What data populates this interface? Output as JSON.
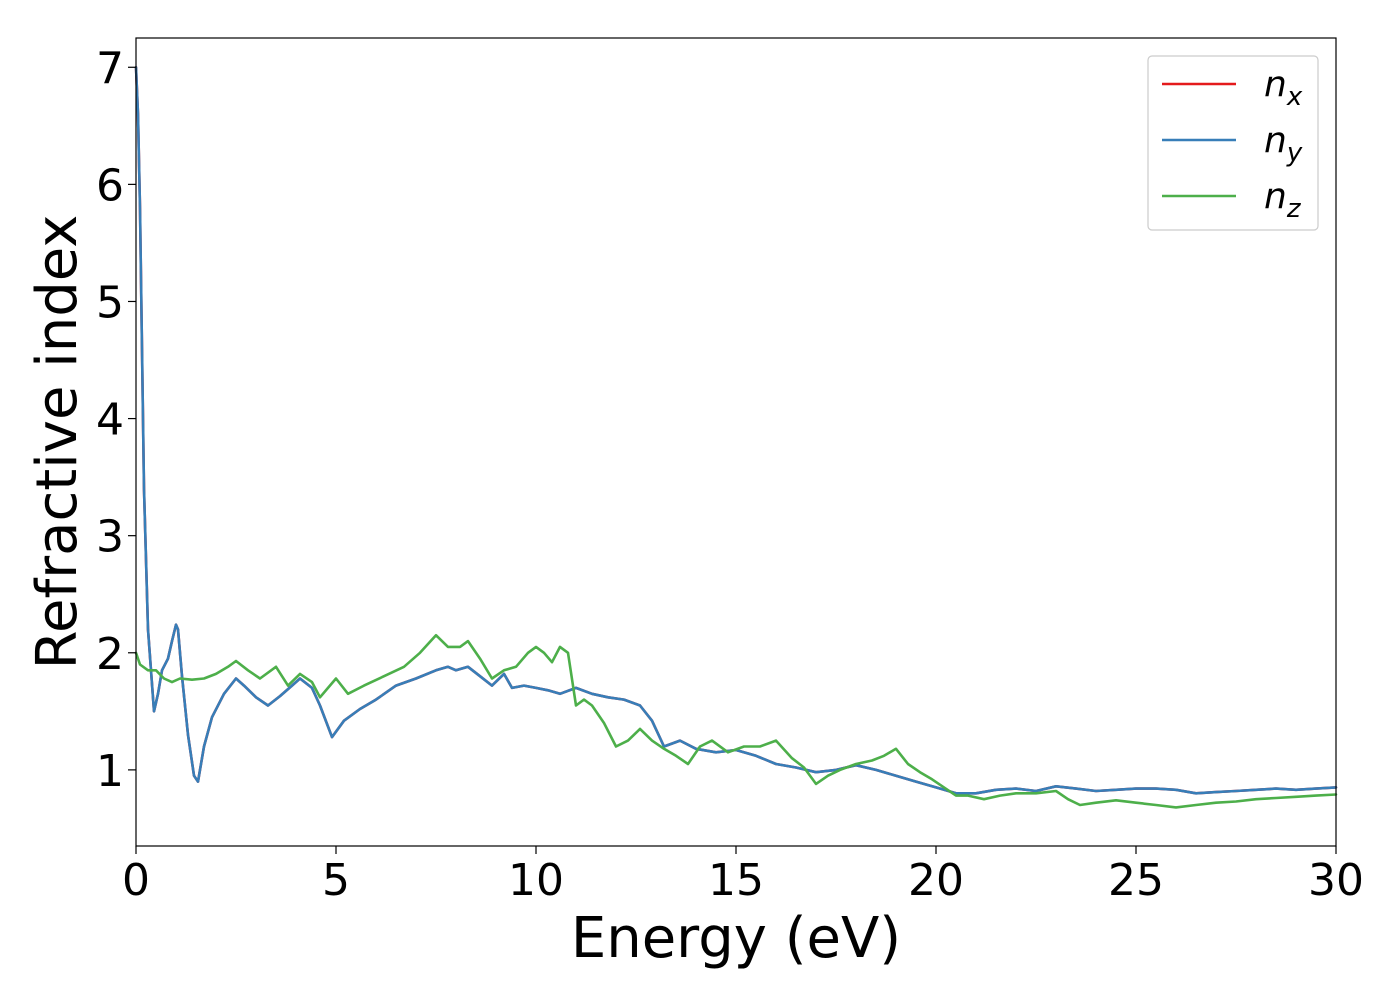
{
  "chart_data": {
    "type": "line",
    "title": "",
    "xlabel": "Energy (eV)",
    "ylabel": "Refractive index",
    "xlim": [
      0,
      30
    ],
    "ylim": [
      0.35,
      7.25
    ],
    "xticks": [
      0,
      5,
      10,
      15,
      20,
      25,
      30
    ],
    "yticks": [
      1,
      2,
      3,
      4,
      5,
      6,
      7
    ],
    "grid": false,
    "legend_position": "top-right",
    "series": [
      {
        "name": "n_x",
        "label_base": "n",
        "label_sub": "x",
        "color": "#e41a1c",
        "x": [
          0,
          0.05,
          0.1,
          0.15,
          0.2,
          0.3,
          0.45,
          0.55,
          0.65,
          0.8,
          0.9,
          1.0,
          1.05,
          1.15,
          1.3,
          1.45,
          1.55,
          1.7,
          1.9,
          2.2,
          2.5,
          2.7,
          3.0,
          3.3,
          3.6,
          3.9,
          4.1,
          4.4,
          4.6,
          4.9,
          5.2,
          5.6,
          6.0,
          6.5,
          7.0,
          7.5,
          7.8,
          8.0,
          8.3,
          8.6,
          8.9,
          9.2,
          9.4,
          9.7,
          10.0,
          10.3,
          10.6,
          11.0,
          11.4,
          11.8,
          12.2,
          12.6,
          12.9,
          13.2,
          13.6,
          14.0,
          14.5,
          15.0,
          15.5,
          16.0,
          16.5,
          17.0,
          17.5,
          18.0,
          18.5,
          19.0,
          19.5,
          20.0,
          20.5,
          21.0,
          21.5,
          22.0,
          22.5,
          23.0,
          23.5,
          24.0,
          24.5,
          25.0,
          25.5,
          26.0,
          26.5,
          27.0,
          27.5,
          28.0,
          28.5,
          29.0,
          29.5,
          30.0
        ],
        "y": [
          7.0,
          6.6,
          5.8,
          4.6,
          3.4,
          2.2,
          1.5,
          1.65,
          1.85,
          1.95,
          2.1,
          2.24,
          2.2,
          1.8,
          1.3,
          0.95,
          0.9,
          1.2,
          1.45,
          1.65,
          1.78,
          1.72,
          1.62,
          1.55,
          1.63,
          1.72,
          1.78,
          1.7,
          1.55,
          1.28,
          1.42,
          1.52,
          1.6,
          1.72,
          1.78,
          1.85,
          1.88,
          1.85,
          1.88,
          1.8,
          1.72,
          1.82,
          1.7,
          1.72,
          1.7,
          1.68,
          1.65,
          1.7,
          1.65,
          1.62,
          1.6,
          1.55,
          1.42,
          1.2,
          1.25,
          1.18,
          1.15,
          1.17,
          1.12,
          1.05,
          1.02,
          0.98,
          1.0,
          1.04,
          1.0,
          0.95,
          0.9,
          0.85,
          0.8,
          0.8,
          0.83,
          0.84,
          0.82,
          0.86,
          0.84,
          0.82,
          0.83,
          0.84,
          0.84,
          0.83,
          0.8,
          0.81,
          0.82,
          0.83,
          0.84,
          0.83,
          0.84,
          0.85
        ]
      },
      {
        "name": "n_y",
        "label_base": "n",
        "label_sub": "y",
        "color": "#377eb8",
        "x": [
          0,
          0.05,
          0.1,
          0.15,
          0.2,
          0.3,
          0.45,
          0.55,
          0.65,
          0.8,
          0.9,
          1.0,
          1.05,
          1.15,
          1.3,
          1.45,
          1.55,
          1.7,
          1.9,
          2.2,
          2.5,
          2.7,
          3.0,
          3.3,
          3.6,
          3.9,
          4.1,
          4.4,
          4.6,
          4.9,
          5.2,
          5.6,
          6.0,
          6.5,
          7.0,
          7.5,
          7.8,
          8.0,
          8.3,
          8.6,
          8.9,
          9.2,
          9.4,
          9.7,
          10.0,
          10.3,
          10.6,
          11.0,
          11.4,
          11.8,
          12.2,
          12.6,
          12.9,
          13.2,
          13.6,
          14.0,
          14.5,
          15.0,
          15.5,
          16.0,
          16.5,
          17.0,
          17.5,
          18.0,
          18.5,
          19.0,
          19.5,
          20.0,
          20.5,
          21.0,
          21.5,
          22.0,
          22.5,
          23.0,
          23.5,
          24.0,
          24.5,
          25.0,
          25.5,
          26.0,
          26.5,
          27.0,
          27.5,
          28.0,
          28.5,
          29.0,
          29.5,
          30.0
        ],
        "y": [
          7.0,
          6.6,
          5.8,
          4.6,
          3.4,
          2.2,
          1.5,
          1.65,
          1.85,
          1.95,
          2.1,
          2.24,
          2.2,
          1.8,
          1.3,
          0.95,
          0.9,
          1.2,
          1.45,
          1.65,
          1.78,
          1.72,
          1.62,
          1.55,
          1.63,
          1.72,
          1.78,
          1.7,
          1.55,
          1.28,
          1.42,
          1.52,
          1.6,
          1.72,
          1.78,
          1.85,
          1.88,
          1.85,
          1.88,
          1.8,
          1.72,
          1.82,
          1.7,
          1.72,
          1.7,
          1.68,
          1.65,
          1.7,
          1.65,
          1.62,
          1.6,
          1.55,
          1.42,
          1.2,
          1.25,
          1.18,
          1.15,
          1.17,
          1.12,
          1.05,
          1.02,
          0.98,
          1.0,
          1.04,
          1.0,
          0.95,
          0.9,
          0.85,
          0.8,
          0.8,
          0.83,
          0.84,
          0.82,
          0.86,
          0.84,
          0.82,
          0.83,
          0.84,
          0.84,
          0.83,
          0.8,
          0.81,
          0.82,
          0.83,
          0.84,
          0.83,
          0.84,
          0.85
        ]
      },
      {
        "name": "n_z",
        "label_base": "n",
        "label_sub": "z",
        "color": "#4daf4a",
        "x": [
          0,
          0.1,
          0.3,
          0.5,
          0.7,
          0.9,
          1.1,
          1.4,
          1.7,
          2.0,
          2.3,
          2.5,
          2.8,
          3.1,
          3.5,
          3.8,
          4.1,
          4.4,
          4.6,
          4.8,
          5.0,
          5.3,
          5.7,
          6.2,
          6.7,
          7.1,
          7.5,
          7.8,
          8.1,
          8.3,
          8.6,
          8.9,
          9.2,
          9.5,
          9.8,
          10.0,
          10.2,
          10.4,
          10.6,
          10.8,
          11.0,
          11.2,
          11.4,
          11.7,
          12.0,
          12.3,
          12.6,
          12.9,
          13.2,
          13.5,
          13.8,
          14.1,
          14.4,
          14.8,
          15.2,
          15.6,
          16.0,
          16.4,
          16.7,
          17.0,
          17.3,
          17.6,
          18.0,
          18.4,
          18.7,
          19.0,
          19.3,
          19.6,
          19.9,
          20.2,
          20.5,
          20.8,
          21.2,
          21.6,
          22.0,
          22.5,
          23.0,
          23.3,
          23.6,
          24.0,
          24.5,
          25.0,
          25.5,
          26.0,
          26.5,
          27.0,
          27.5,
          28.0,
          28.5,
          29.0,
          29.5,
          30.0
        ],
        "y": [
          2.0,
          1.9,
          1.85,
          1.85,
          1.78,
          1.75,
          1.78,
          1.77,
          1.78,
          1.82,
          1.88,
          1.93,
          1.85,
          1.78,
          1.88,
          1.72,
          1.82,
          1.75,
          1.62,
          1.7,
          1.78,
          1.65,
          1.72,
          1.8,
          1.88,
          2.0,
          2.15,
          2.05,
          2.05,
          2.1,
          1.95,
          1.78,
          1.85,
          1.88,
          2.0,
          2.05,
          2.0,
          1.92,
          2.05,
          2.0,
          1.55,
          1.6,
          1.55,
          1.4,
          1.2,
          1.25,
          1.35,
          1.25,
          1.18,
          1.12,
          1.05,
          1.2,
          1.25,
          1.15,
          1.2,
          1.2,
          1.25,
          1.1,
          1.02,
          0.88,
          0.95,
          1.0,
          1.05,
          1.08,
          1.12,
          1.18,
          1.05,
          0.98,
          0.92,
          0.85,
          0.78,
          0.78,
          0.75,
          0.78,
          0.8,
          0.8,
          0.82,
          0.75,
          0.7,
          0.72,
          0.74,
          0.72,
          0.7,
          0.68,
          0.7,
          0.72,
          0.73,
          0.75,
          0.76,
          0.77,
          0.78,
          0.79
        ]
      }
    ]
  }
}
